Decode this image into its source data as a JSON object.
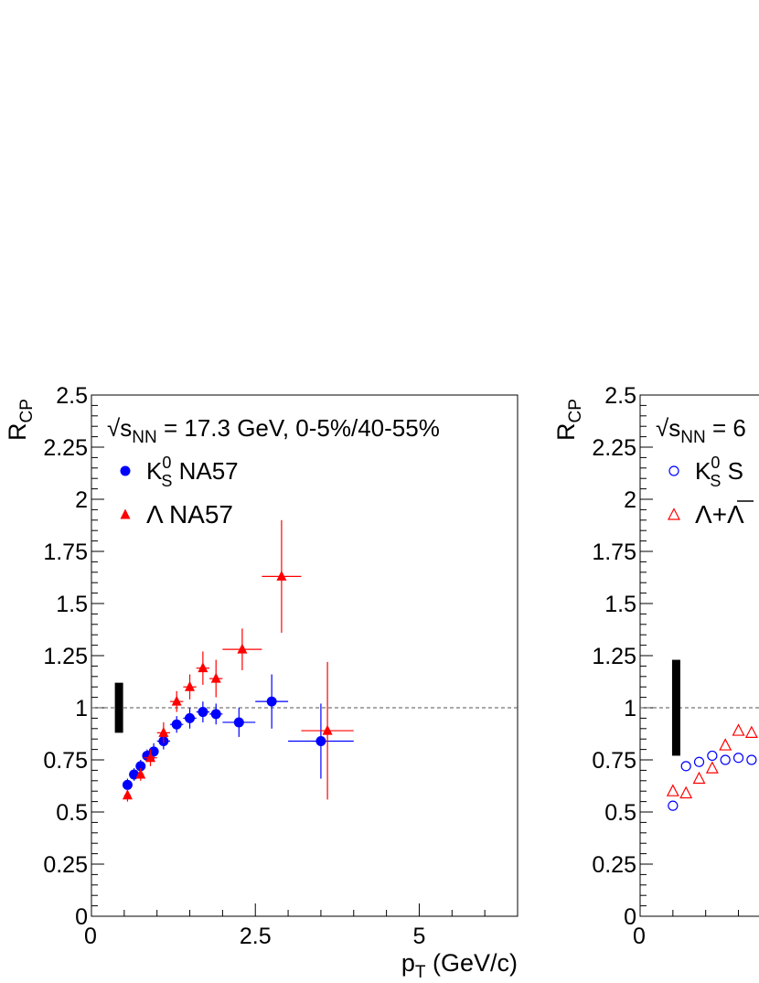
{
  "chart_data": [
    {
      "type": "scatter",
      "ylabel": "R",
      "ylabel_sub": "CP",
      "xlabel": "p",
      "xlabel_sub": "T",
      "xlabel_unit": " (GeV/c)",
      "annotation": {
        "prefix": "√s",
        "sub": "NN",
        "text": " = 17.3 GeV, 0-5%/40-55%"
      },
      "xlim": [
        0,
        6.5
      ],
      "ylim": [
        0,
        2.5
      ],
      "x_ticks": [
        "0",
        "2.5",
        "5"
      ],
      "y_ticks": [
        "0",
        "0.25",
        "0.5",
        "0.75",
        "1",
        "1.25",
        "1.5",
        "1.75",
        "2",
        "2.25",
        "2.5"
      ],
      "reference_line": 1,
      "norm_uncertainty": {
        "x": 0.42,
        "low": 0.88,
        "high": 1.12
      },
      "legend": [
        {
          "symbol": "circle",
          "color": "#0000ff",
          "label_main": "K",
          "label_sup": "0",
          "label_sub": "S",
          "label_rest": "  NA57"
        },
        {
          "symbol": "triangle",
          "color": "#ff0000",
          "label_main": "Λ",
          "label_sup": "",
          "label_sub": "",
          "label_rest": "  NA57"
        }
      ],
      "series": [
        {
          "name": "K0S NA57",
          "marker": "circle",
          "color": "#0000ff",
          "points": [
            {
              "x": 0.55,
              "y": 0.63,
              "xerr": 0.05,
              "yerr": 0.03
            },
            {
              "x": 0.65,
              "y": 0.68,
              "xerr": 0.05,
              "yerr": 0.03
            },
            {
              "x": 0.75,
              "y": 0.72,
              "xerr": 0.05,
              "yerr": 0.03
            },
            {
              "x": 0.85,
              "y": 0.77,
              "xerr": 0.05,
              "yerr": 0.03
            },
            {
              "x": 0.95,
              "y": 0.79,
              "xerr": 0.05,
              "yerr": 0.04
            },
            {
              "x": 1.1,
              "y": 0.84,
              "xerr": 0.1,
              "yerr": 0.04
            },
            {
              "x": 1.3,
              "y": 0.92,
              "xerr": 0.1,
              "yerr": 0.04
            },
            {
              "x": 1.5,
              "y": 0.95,
              "xerr": 0.1,
              "yerr": 0.05
            },
            {
              "x": 1.7,
              "y": 0.98,
              "xerr": 0.1,
              "yerr": 0.05
            },
            {
              "x": 1.9,
              "y": 0.97,
              "xerr": 0.1,
              "yerr": 0.05
            },
            {
              "x": 2.25,
              "y": 0.93,
              "xerr": 0.25,
              "yerr": 0.07
            },
            {
              "x": 2.75,
              "y": 1.03,
              "xerr": 0.25,
              "yerr": 0.13
            },
            {
              "x": 3.5,
              "y": 0.84,
              "xerr": 0.5,
              "yerr": 0.18
            }
          ]
        },
        {
          "name": "Λ NA57",
          "marker": "triangle",
          "color": "#ff0000",
          "points": [
            {
              "x": 0.55,
              "y": 0.58,
              "xerr": 0.05,
              "yerr": 0.03
            },
            {
              "x": 0.75,
              "y": 0.68,
              "xerr": 0.05,
              "yerr": 0.03
            },
            {
              "x": 0.9,
              "y": 0.76,
              "xerr": 0.1,
              "yerr": 0.04
            },
            {
              "x": 1.1,
              "y": 0.88,
              "xerr": 0.1,
              "yerr": 0.05
            },
            {
              "x": 1.3,
              "y": 1.03,
              "xerr": 0.1,
              "yerr": 0.05
            },
            {
              "x": 1.5,
              "y": 1.1,
              "xerr": 0.1,
              "yerr": 0.06
            },
            {
              "x": 1.7,
              "y": 1.19,
              "xerr": 0.1,
              "yerr": 0.08
            },
            {
              "x": 1.9,
              "y": 1.14,
              "xerr": 0.1,
              "yerr": 0.09
            },
            {
              "x": 2.3,
              "y": 1.28,
              "xerr": 0.3,
              "yerr": 0.1
            },
            {
              "x": 2.9,
              "y": 1.63,
              "xerr": 0.3,
              "yerr": 0.27
            },
            {
              "x": 3.6,
              "y": 0.89,
              "xerr": 0.4,
              "yerr": 0.33
            }
          ]
        }
      ]
    },
    {
      "type": "scatter",
      "ylabel": "R",
      "ylabel_sub": "CP",
      "annotation": {
        "prefix": "√s",
        "sub": "NN",
        "text": " = 6"
      },
      "xlim": [
        0,
        6.5
      ],
      "ylim": [
        0,
        2.5
      ],
      "x_ticks": [
        "0"
      ],
      "y_ticks": [
        "0",
        "0.25",
        "0.5",
        "0.75",
        "1",
        "1.25",
        "1.5",
        "1.75",
        "2",
        "2.25",
        "2.5"
      ],
      "reference_line": 1,
      "norm_uncertainty": {
        "x": 0.55,
        "low": 0.77,
        "high": 1.23
      },
      "legend": [
        {
          "symbol": "open-circle",
          "color": "#0000ff",
          "label_main": "K",
          "label_sup": "0",
          "label_sub": "S",
          "label_rest": "  S"
        },
        {
          "symbol": "open-triangle",
          "color": "#ff0000",
          "label_main": "Λ+Λ",
          "label_sup": "",
          "label_sub": "",
          "label_rest": ""
        }
      ],
      "series": [
        {
          "name": "K0S S",
          "marker": "open-circle",
          "color": "#0000ff",
          "points": [
            {
              "x": 0.5,
              "y": 0.53
            },
            {
              "x": 0.7,
              "y": 0.72
            },
            {
              "x": 0.9,
              "y": 0.74
            },
            {
              "x": 1.1,
              "y": 0.77
            },
            {
              "x": 1.3,
              "y": 0.75
            },
            {
              "x": 1.5,
              "y": 0.76
            },
            {
              "x": 1.7,
              "y": 0.75
            }
          ]
        },
        {
          "name": "Λ+Λ",
          "marker": "open-triangle",
          "color": "#ff0000",
          "points": [
            {
              "x": 0.5,
              "y": 0.6
            },
            {
              "x": 0.7,
              "y": 0.59
            },
            {
              "x": 0.9,
              "y": 0.66
            },
            {
              "x": 1.1,
              "y": 0.71
            },
            {
              "x": 1.3,
              "y": 0.82
            },
            {
              "x": 1.5,
              "y": 0.89
            },
            {
              "x": 1.7,
              "y": 0.88
            }
          ]
        }
      ]
    }
  ]
}
